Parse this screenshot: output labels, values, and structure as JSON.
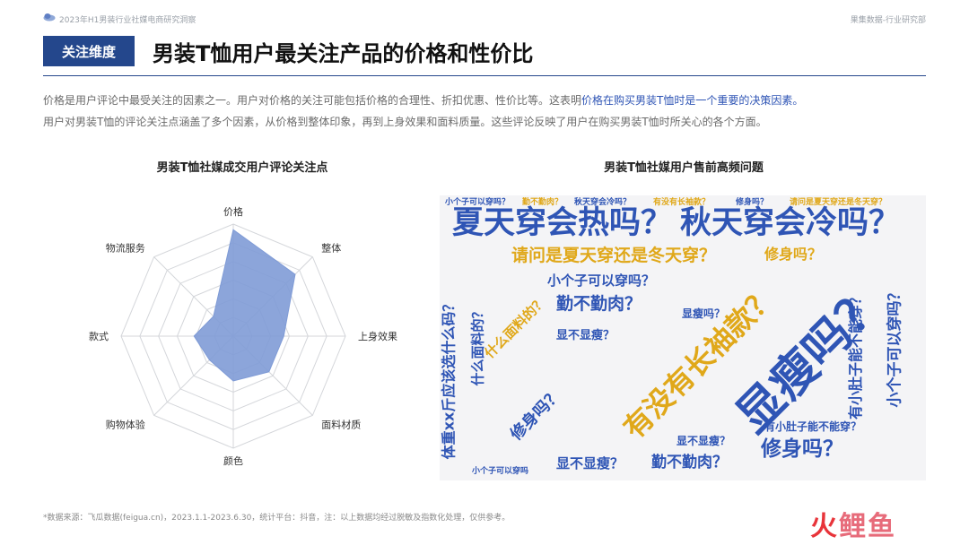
{
  "header": {
    "report_title": "2023年H1男装行业社媒电商研究洞察",
    "org": "果集数据-行业研究部",
    "logo_icon": "cloud-logo-icon"
  },
  "tag": "关注维度",
  "headline": "男装T恤用户最关注产品的价格和性价比",
  "intro": {
    "line1_a": "价格是用户评论中最受关注的因素之一。用户对价格的关注可能包括价格的合理性、折扣优惠、性价比等。这表明",
    "line1_highlight": "价格在购买男装T恤时是一个重要的决策因素。",
    "line2": "用户对男装T恤的评论关注点涵盖了多个因素，从价格到整体印象，再到上身效果和面料质量。这些评论反映了用户在购买男装T恤时所关心的各个方面。"
  },
  "colors": {
    "brand_blue": "#24478c",
    "radar_fill": "#7f9bd6",
    "cloud_blue": "#2f55b5",
    "cloud_gold": "#e0a81a",
    "cloud_bg": "#f4f4f6"
  },
  "chart_data": [
    {
      "type": "radar",
      "title": "男装T恤社媒成交用户评论关注点",
      "categories": [
        "价格",
        "整体",
        "上身效果",
        "面料材质",
        "颜色",
        "购物体验",
        "款式",
        "物流服务"
      ],
      "values": [
        0.95,
        0.78,
        0.45,
        0.45,
        0.4,
        0.3,
        0.35,
        0.25
      ],
      "scale": [
        0,
        1
      ],
      "rings": 6,
      "grid": true
    },
    {
      "type": "wordcloud",
      "title": "男装T恤社媒用户售前高频问题",
      "words": [
        {
          "text": "显瘦吗？",
          "weight": 5
        },
        {
          "text": "有没有长袖款？",
          "weight": 4
        },
        {
          "text": "夏天穿会热吗？",
          "weight": 4
        },
        {
          "text": "秋天穿会冷吗？",
          "weight": 4
        },
        {
          "text": "请问是夏天穿还是冬天穿？",
          "weight": 3
        },
        {
          "text": "修身吗？",
          "weight": 3
        },
        {
          "text": "勤不勤肉？",
          "weight": 3
        },
        {
          "text": "小个子可以穿吗？",
          "weight": 2
        },
        {
          "text": "有小肚子能不能穿？",
          "weight": 2
        },
        {
          "text": "体重xx斤应该选什么码？",
          "weight": 2
        },
        {
          "text": "什么面料的？",
          "weight": 2
        },
        {
          "text": "显不显瘦？",
          "weight": 2
        },
        {
          "text": "小个子可以穿吗",
          "weight": 2
        }
      ]
    }
  ],
  "footnote": "*数据来源：飞瓜数据(feigua.cn)，2023.1.1-2023.6.30，统计平台：抖音，注：以上数据均经过脱敏及指数化处理，仅供参考。",
  "brand": {
    "part1": "火",
    "part2": "鲤鱼"
  }
}
